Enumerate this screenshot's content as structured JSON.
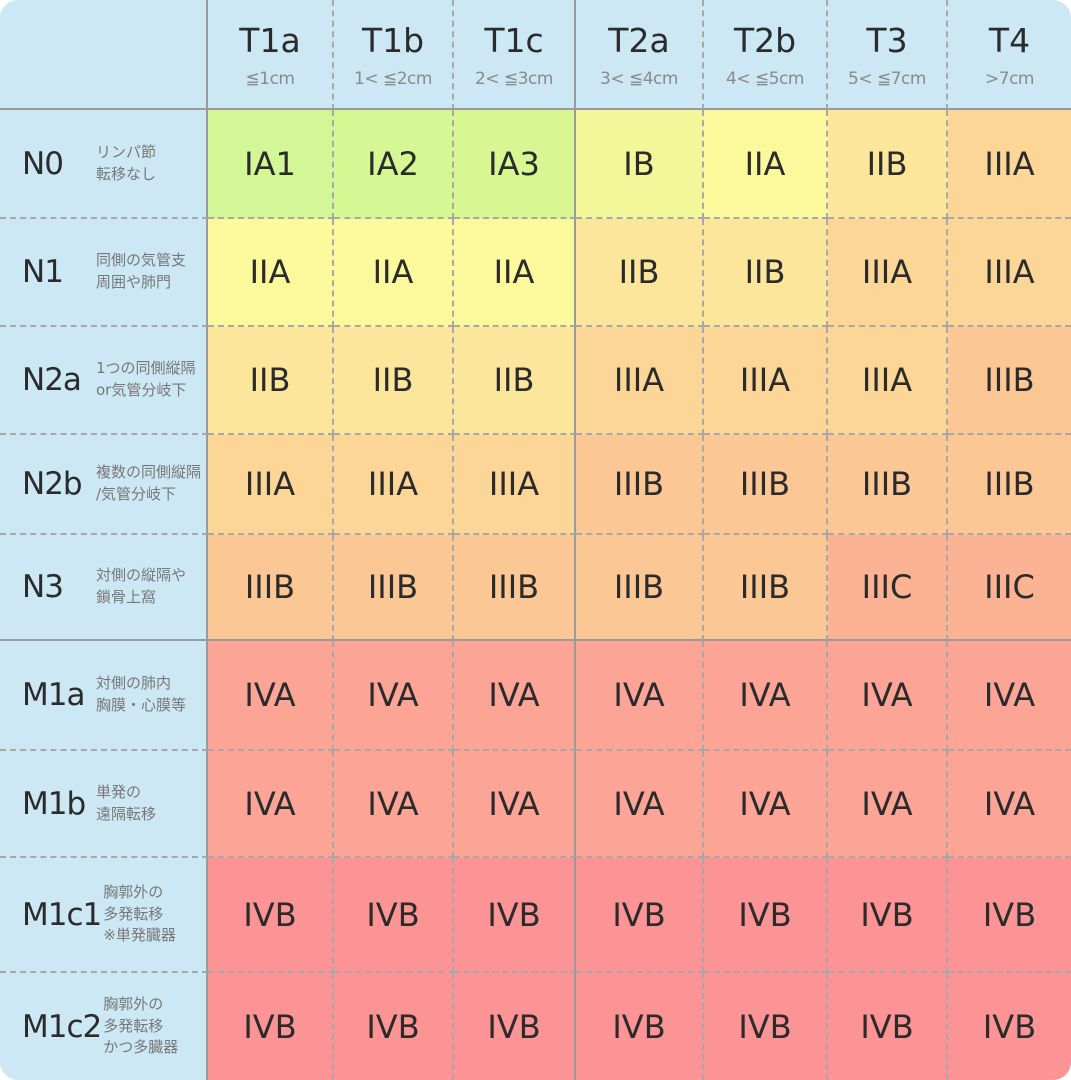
{
  "columns": [
    {
      "code": "T1a",
      "size": "≦1cm"
    },
    {
      "code": "T1b",
      "size": "1< ≦2cm"
    },
    {
      "code": "T1c",
      "size": "2< ≦3cm"
    },
    {
      "code": "T2a",
      "size": "3< ≦4cm"
    },
    {
      "code": "T2b",
      "size": "4< ≦5cm"
    },
    {
      "code": "T3",
      "size": "5< ≦7cm"
    },
    {
      "code": "T4",
      "size": ">7cm"
    }
  ],
  "rows": [
    {
      "code": "N0",
      "desc": "リンパ節\n転移なし",
      "stages": [
        "IA1",
        "IA2",
        "IA3",
        "IB",
        "IIA",
        "IIB",
        "IIIA"
      ]
    },
    {
      "code": "N1",
      "desc": "同側の気管支\n周囲や肺門",
      "stages": [
        "IIA",
        "IIA",
        "IIA",
        "IIB",
        "IIB",
        "IIIA",
        "IIIA"
      ]
    },
    {
      "code": "N2a",
      "desc": "1つの同側縦隔\nor気管分岐下",
      "stages": [
        "IIB",
        "IIB",
        "IIB",
        "IIIA",
        "IIIA",
        "IIIA",
        "IIIB"
      ]
    },
    {
      "code": "N2b",
      "desc": "複数の同側縦隔\n/気管分岐下",
      "stages": [
        "IIIA",
        "IIIA",
        "IIIA",
        "IIIB",
        "IIIB",
        "IIIB",
        "IIIB"
      ]
    },
    {
      "code": "N3",
      "desc": "対側の縦隔や\n鎖骨上窩",
      "stages": [
        "IIIB",
        "IIIB",
        "IIIB",
        "IIIB",
        "IIIB",
        "IIIC",
        "IIIC"
      ]
    },
    {
      "code": "M1a",
      "desc": "対側の肺内\n胸膜・心膜等",
      "stages": [
        "IVA",
        "IVA",
        "IVA",
        "IVA",
        "IVA",
        "IVA",
        "IVA"
      ]
    },
    {
      "code": "M1b",
      "desc": "単発の\n遠隔転移",
      "stages": [
        "IVA",
        "IVA",
        "IVA",
        "IVA",
        "IVA",
        "IVA",
        "IVA"
      ]
    },
    {
      "code": "M1c1",
      "desc": "胸郭外の\n多発転移\n※単発臓器",
      "stages": [
        "IVB",
        "IVB",
        "IVB",
        "IVB",
        "IVB",
        "IVB",
        "IVB"
      ]
    },
    {
      "code": "M1c2",
      "desc": "胸郭外の\n多発転移\nかつ多臓器",
      "stages": [
        "IVB",
        "IVB",
        "IVB",
        "IVB",
        "IVB",
        "IVB",
        "IVB"
      ]
    }
  ],
  "stage_colors": {
    "IA1": "#d3f796",
    "IA2": "#d5f794",
    "IA3": "#d8f792",
    "IB": "#f3f79a",
    "IIA": "#fcf99c",
    "IIB": "#fbe69b",
    "IIIA": "#fcd697",
    "IIIB": "#fbc795",
    "IIIC": "#fbb394",
    "IVA": "#fca496",
    "IVB": "#fc9394"
  }
}
